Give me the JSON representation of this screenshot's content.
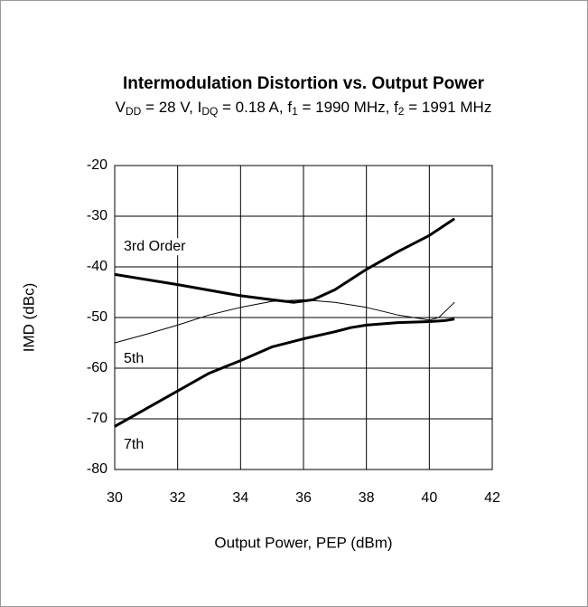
{
  "chart_data": {
    "type": "line",
    "title": "Intermodulation Distortion vs. Output Power",
    "subtitle": [
      "V",
      "DD",
      " = 28 V, I",
      "DQ",
      " = 0.18 A, f",
      "1",
      " = 1990 MHz, f",
      "2",
      " = 1991 MHz"
    ],
    "x_label": "Output Power, PEP (dBm)",
    "y_label": "IMD (dBc)",
    "xlim": [
      30,
      42
    ],
    "xticks": [
      30,
      32,
      34,
      36,
      38,
      40,
      42
    ],
    "ylim": [
      -80,
      -20
    ],
    "yticks": [
      -80,
      -70,
      -60,
      -50,
      -40,
      -30,
      -20
    ],
    "grid": true,
    "series": [
      {
        "name": "3rd Order",
        "color": "#000000",
        "linewidth": 3,
        "x": [
          30,
          32,
          34,
          35,
          35.7,
          36.3,
          37,
          38,
          39,
          40,
          40.8
        ],
        "values": [
          -41.5,
          -43.5,
          -45.7,
          -46.5,
          -47,
          -46.5,
          -44.5,
          -40.5,
          -37,
          -33.8,
          -30.5
        ]
      },
      {
        "name": "5th",
        "color": "#000000",
        "linewidth": 1,
        "x": [
          30,
          31,
          32,
          33,
          34,
          35,
          36,
          37,
          38,
          39,
          40,
          40.3,
          40.8
        ],
        "values": [
          -55,
          -53.3,
          -51.5,
          -49.5,
          -48,
          -46.8,
          -46.5,
          -47,
          -48,
          -49.5,
          -50.5,
          -50,
          -47
        ]
      },
      {
        "name": "7th",
        "color": "#000000",
        "linewidth": 3,
        "x": [
          30,
          31,
          32,
          33,
          34,
          35,
          36,
          37,
          37.5,
          38,
          39,
          40,
          40.5,
          40.8
        ],
        "values": [
          -71.5,
          -68,
          -64.5,
          -61,
          -58.5,
          -55.8,
          -54.2,
          -52.8,
          -52,
          -51.5,
          -51,
          -50.8,
          -50.6,
          -50.3
        ]
      }
    ]
  }
}
